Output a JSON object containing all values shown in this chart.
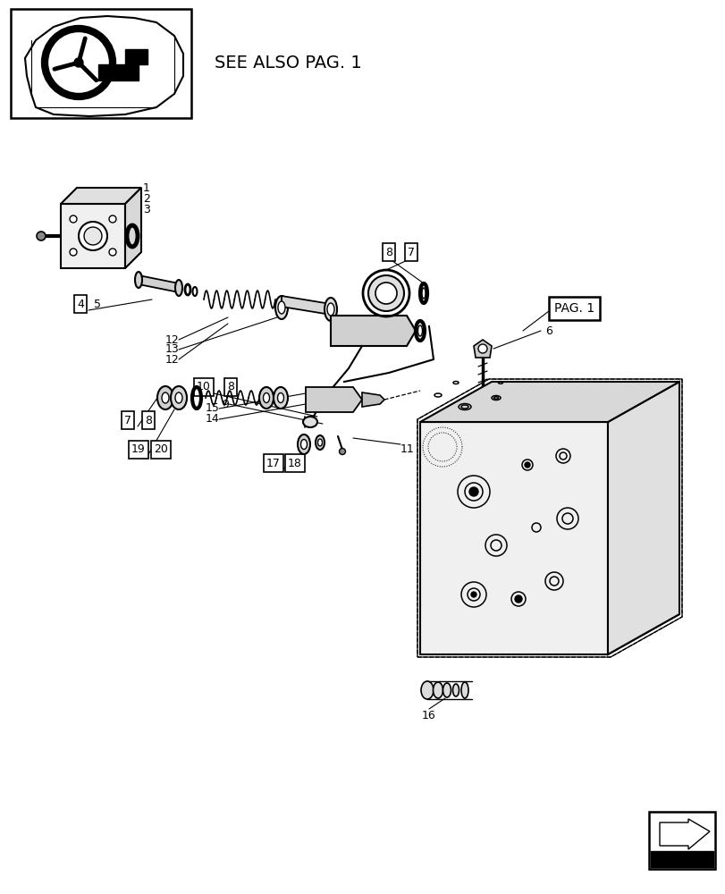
{
  "bg_color": "#ffffff",
  "line_color": "#000000",
  "title_text": "SEE ALSO PAG. 1",
  "pag1_label": "PAG. 1"
}
